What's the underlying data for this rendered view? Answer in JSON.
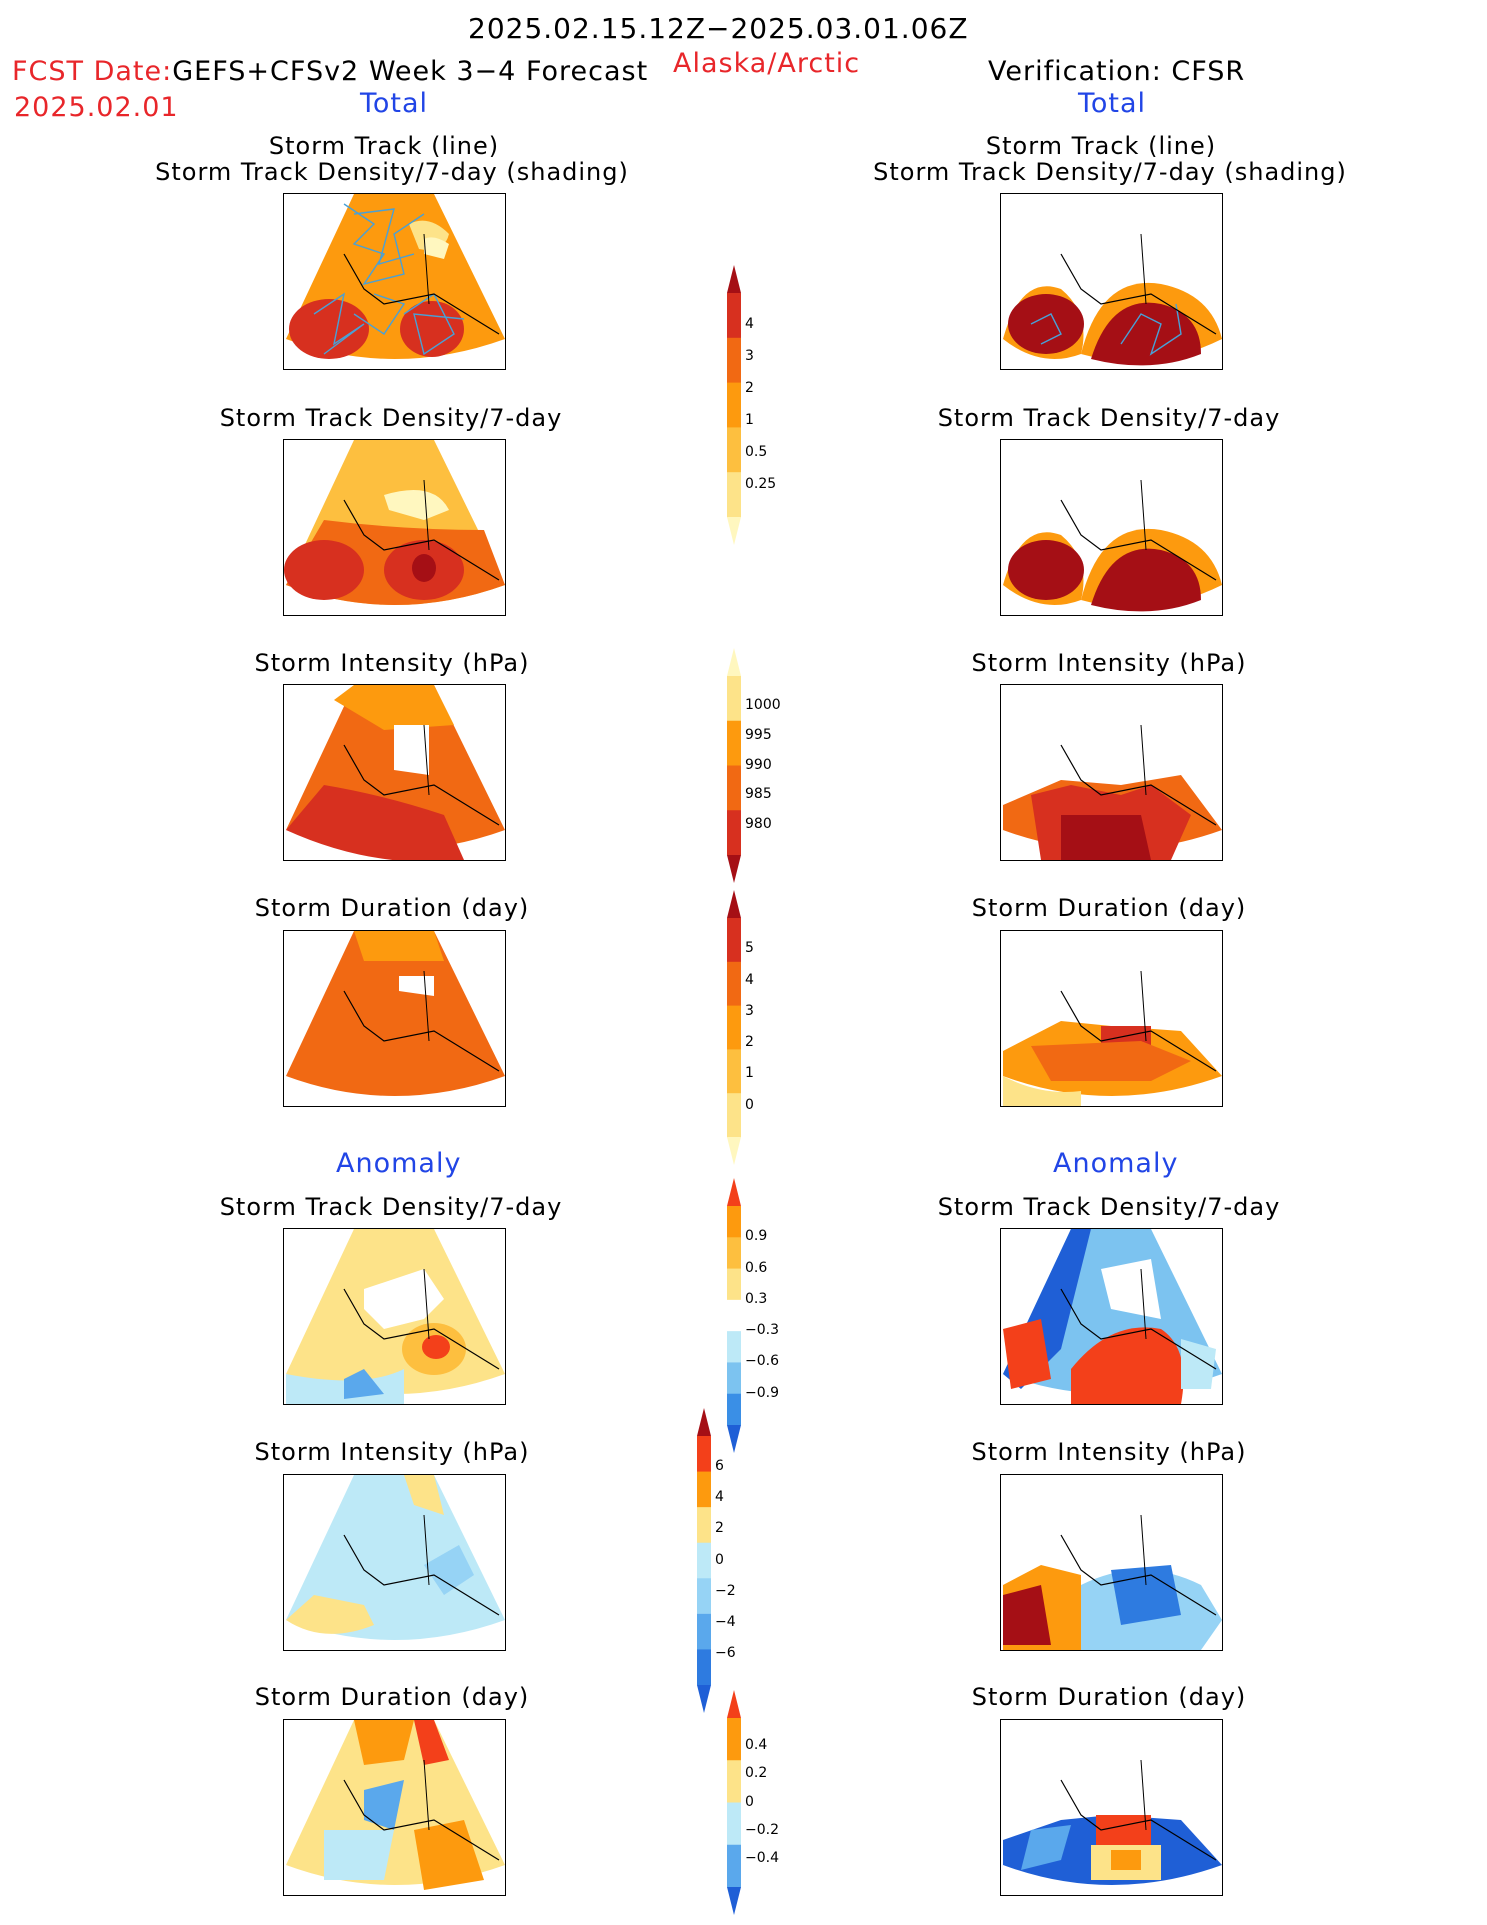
{
  "header": {
    "period": "2025.02.15.12Z−2025.03.01.06Z",
    "fcst_prefix": "FCST Date:",
    "fcst_model": "GEFS+CFSv2 Week 3−4 Forecast",
    "fcst_date": "2025.02.01",
    "region": "Alaska/Arctic",
    "verification": "Verification: CFSR"
  },
  "left_column": {
    "total_label": "Total",
    "anomaly_label": "Anomaly",
    "panels": {
      "p1_title_a": "Storm Track (line)",
      "p1_title_b": "Storm Track Density/7-day (shading)",
      "p2_title": "Storm Track Density/7-day",
      "p3_title": "Storm Intensity (hPa)",
      "p4_title": "Storm Duration (day)",
      "p5_title": "Storm Track Density/7-day",
      "p6_title": "Storm Intensity (hPa)",
      "p7_title": "Storm Duration (day)"
    }
  },
  "right_column": {
    "total_label": "Total",
    "anomaly_label": "Anomaly",
    "panels": {
      "p1_title_a": "Storm Track (line)",
      "p1_title_b": "Storm Track Density/7-day (shading)",
      "p2_title": "Storm Track Density/7-day",
      "p3_title": "Storm Intensity (hPa)",
      "p4_title": "Storm Duration (day)",
      "p5_title": "Storm Track Density/7-day",
      "p6_title": "Storm Intensity (hPa)",
      "p7_title": "Storm Duration (day)"
    }
  },
  "colorbars": {
    "density": {
      "ticks": [
        "4",
        "3",
        "2",
        "1",
        "0.5",
        "0.25"
      ],
      "colors": [
        "#a50f15",
        "#d7301f",
        "#f16913",
        "#fd9a0e",
        "#fdbf3f",
        "#fde389",
        "#fff7bf"
      ]
    },
    "intensity": {
      "ticks": [
        "1000",
        "995",
        "990",
        "985",
        "980"
      ],
      "colors": [
        "#fff7bf",
        "#fde389",
        "#fd9a0e",
        "#f16913",
        "#d7301f",
        "#a50f15"
      ]
    },
    "duration": {
      "ticks": [
        "5",
        "4",
        "3",
        "2",
        "1",
        "0"
      ],
      "colors": [
        "#a50f15",
        "#d7301f",
        "#f16913",
        "#fd9a0e",
        "#fdbf3f",
        "#fde389",
        "#fff7bf"
      ]
    },
    "anom_density": {
      "ticks": [
        "0.9",
        "0.6",
        "0.3",
        "−0.3",
        "−0.6",
        "−0.9"
      ],
      "colors": [
        "#f3401a",
        "#fd9a0e",
        "#fdbf3f",
        "#fde389",
        "#ffffff",
        "#bde9f7",
        "#7cc3f0",
        "#3a8fe6",
        "#1f5fd6"
      ]
    },
    "anom_intensity": {
      "ticks": [
        "6",
        "4",
        "2",
        "0",
        "−2",
        "−4",
        "−6"
      ],
      "colors": [
        "#a50f15",
        "#f3401a",
        "#fd9a0e",
        "#fde389",
        "#bde9f7",
        "#96d3f5",
        "#5aa8ec",
        "#2e7be0",
        "#1f5fd6"
      ]
    },
    "anom_duration": {
      "ticks": [
        "0.4",
        "0.2",
        "0",
        "−0.2",
        "−0.4"
      ],
      "colors": [
        "#f3401a",
        "#fd9a0e",
        "#fde389",
        "#bde9f7",
        "#5aa8ec",
        "#1f5fd6"
      ]
    }
  },
  "colors": {
    "track_line": "#49a0d6",
    "coast": "#000000"
  }
}
